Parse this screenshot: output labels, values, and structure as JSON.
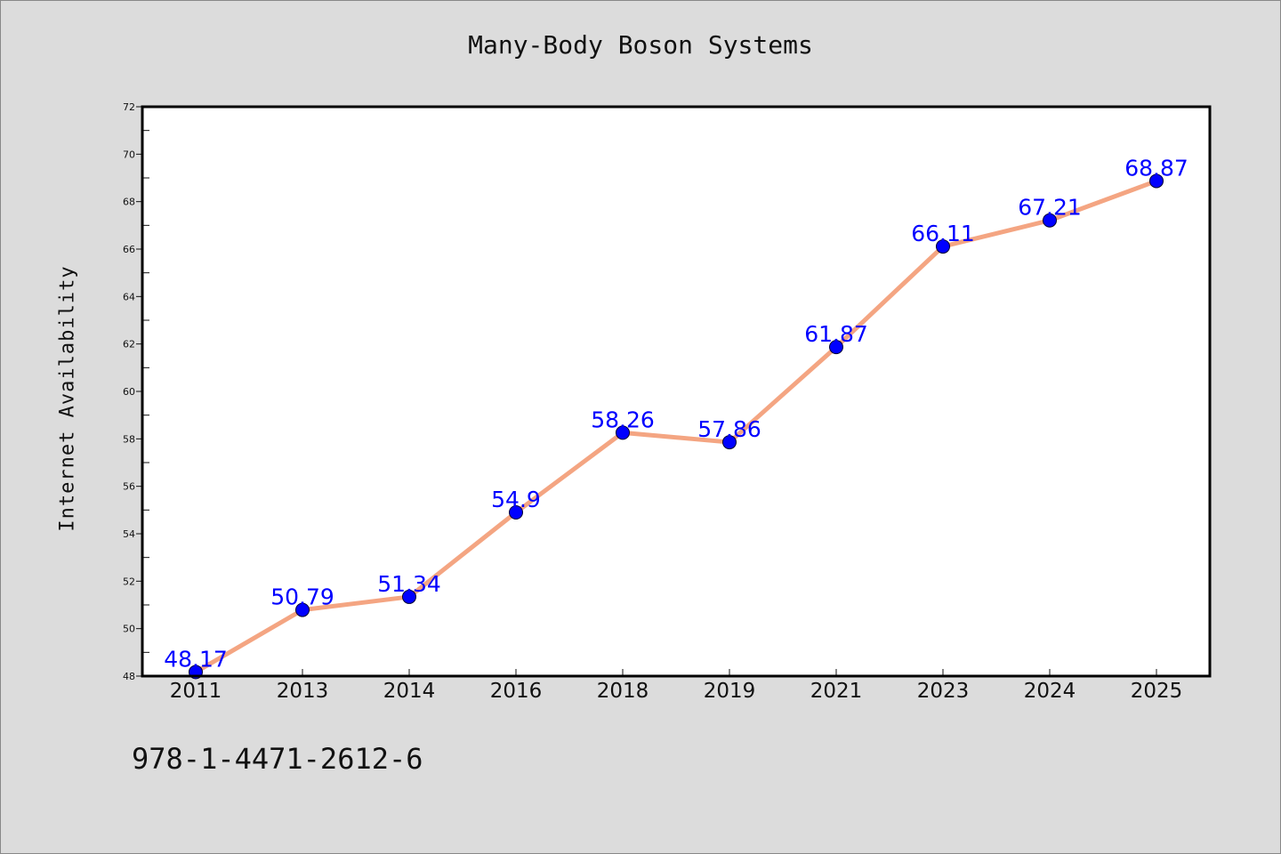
{
  "page": {
    "title": "Many-Body Boson Systems",
    "footer_text": "978-1-4471-2612-6"
  },
  "chart_data": {
    "type": "line",
    "title": "Many-Body Boson Systems",
    "xlabel": "",
    "ylabel": "Internet Availability",
    "categories": [
      "2011",
      "2013",
      "2014",
      "2016",
      "2018",
      "2019",
      "2021",
      "2023",
      "2024",
      "2025"
    ],
    "series": [
      {
        "values": [
          48.17,
          50.79,
          51.34,
          54.9,
          58.26,
          57.86,
          61.87,
          66.11,
          67.21,
          68.87
        ],
        "data_labels": [
          "48.17",
          "50.79",
          "51.34",
          "54.9",
          "58.26",
          "57.86",
          "61.87",
          "66.11",
          "67.21",
          "68.87"
        ],
        "line_color": "#f4a582",
        "marker_color": "#0000ff"
      }
    ],
    "ylim": [
      48,
      72
    ],
    "yticks": [
      "48",
      "50",
      "52",
      "54",
      "56",
      "58",
      "60",
      "62",
      "64",
      "66",
      "68",
      "70",
      "72"
    ],
    "grid": false,
    "legend": "none",
    "colors": {
      "background": "#dcdcdc",
      "plot_background": "#ffffff",
      "label_color": "#0000ff"
    }
  }
}
